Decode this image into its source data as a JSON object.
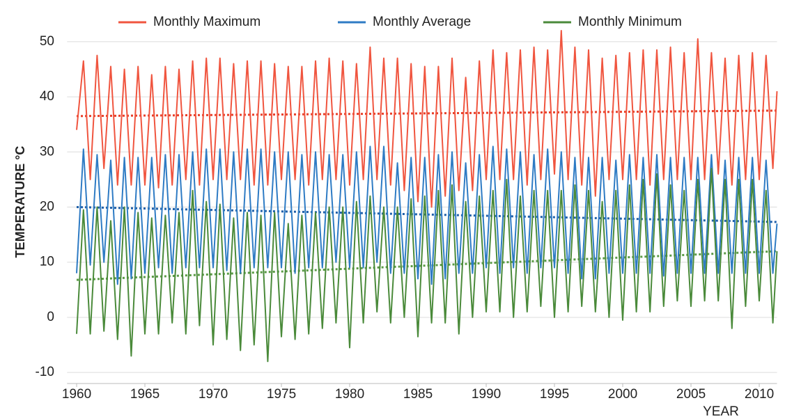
{
  "chart_data": {
    "type": "line",
    "xlabel": "YEAR",
    "ylabel": "TEMPERATURE  °C",
    "x": [
      1960,
      1960.5,
      1961,
      1961.5,
      1962,
      1962.5,
      1963,
      1963.5,
      1964,
      1964.5,
      1965,
      1965.5,
      1966,
      1966.5,
      1967,
      1967.5,
      1968,
      1968.5,
      1969,
      1969.5,
      1970,
      1970.5,
      1971,
      1971.5,
      1972,
      1972.5,
      1973,
      1973.5,
      1974,
      1974.5,
      1975,
      1975.5,
      1976,
      1976.5,
      1977,
      1977.5,
      1978,
      1978.5,
      1979,
      1979.5,
      1980,
      1980.5,
      1981,
      1981.5,
      1982,
      1982.5,
      1983,
      1983.5,
      1984,
      1984.5,
      1985,
      1985.5,
      1986,
      1986.5,
      1987,
      1987.5,
      1988,
      1988.5,
      1989,
      1989.5,
      1990,
      1990.5,
      1991,
      1991.5,
      1992,
      1992.5,
      1993,
      1993.5,
      1994,
      1994.5,
      1995,
      1995.5,
      1996,
      1996.5,
      1997,
      1997.5,
      1998,
      1998.5,
      1999,
      1999.5,
      2000,
      2000.5,
      2001,
      2001.5,
      2002,
      2002.5,
      2003,
      2003.5,
      2004,
      2004.5,
      2005,
      2005.5,
      2006,
      2006.5,
      2007,
      2007.5,
      2008,
      2008.5,
      2009,
      2009.5,
      2010,
      2010.5,
      2011,
      2011.3
    ],
    "series": [
      {
        "name": "Monthly Maximum",
        "color": "#f0553f",
        "values": [
          34,
          46.5,
          25,
          47.5,
          27,
          45.5,
          24,
          45,
          24,
          45.5,
          24,
          44,
          23.5,
          45.5,
          24,
          45,
          25,
          46.5,
          24,
          47,
          25,
          47,
          25,
          46,
          25,
          46.5,
          24,
          46.5,
          24,
          46,
          25,
          45.5,
          25,
          45.5,
          24,
          46.5,
          25,
          47,
          25,
          46.5,
          24,
          46,
          25,
          49,
          25,
          47,
          24,
          47,
          23,
          46,
          21,
          45.5,
          20,
          45.5,
          22,
          47,
          23,
          43.5,
          23,
          46.5,
          25,
          48.5,
          25,
          48,
          25,
          48.5,
          24,
          49,
          25,
          48.5,
          26,
          52,
          25,
          49,
          24,
          48.5,
          22,
          47,
          25,
          47.5,
          25,
          48,
          25,
          48.5,
          24,
          48.5,
          25,
          49,
          25,
          48,
          25,
          50.5,
          25,
          48,
          26,
          47,
          24,
          47.5,
          25,
          48,
          25,
          47.5,
          27,
          41
        ]
      },
      {
        "name": "Monthly Average",
        "color": "#2e7bc4",
        "values": [
          8,
          30.5,
          9.5,
          29.5,
          10,
          28.5,
          6,
          29,
          7,
          29,
          8,
          29,
          9,
          29.5,
          8,
          29.5,
          9,
          30,
          9,
          30.5,
          9,
          30.5,
          8.5,
          30,
          8,
          30.5,
          9,
          30.5,
          9,
          30,
          9,
          30,
          8,
          29.5,
          9,
          30,
          9,
          29.5,
          10,
          29.5,
          9,
          30,
          9,
          31,
          10,
          31,
          8,
          28,
          8,
          29,
          7,
          29,
          6,
          29.5,
          7,
          30,
          8,
          28,
          8,
          29.5,
          9,
          31,
          8,
          30.5,
          9,
          30,
          8,
          29.5,
          9,
          30.5,
          9,
          30,
          8,
          29,
          7,
          29,
          7,
          29,
          8,
          28.5,
          8,
          29.5,
          8,
          29,
          8,
          29.5,
          7.5,
          29,
          8,
          29,
          8,
          29,
          8,
          29.5,
          8,
          28.5,
          8,
          29,
          8,
          29,
          8,
          28.5,
          8,
          17
        ]
      },
      {
        "name": "Monthly Minimum",
        "color": "#4a8a3a",
        "values": [
          -3,
          19.5,
          -3,
          20,
          -2.5,
          17.5,
          -4,
          20,
          -7,
          19,
          -3,
          18,
          -3,
          18.5,
          -1,
          19,
          -3,
          23,
          -1.5,
          21,
          -5,
          20.5,
          -4,
          18,
          -6,
          19,
          -5,
          18.5,
          -8,
          19,
          -3.5,
          17,
          -4,
          18.5,
          -3,
          19,
          -2,
          20,
          -1,
          20,
          -5.5,
          21,
          -1,
          22,
          1,
          20,
          -1,
          20,
          0,
          21.5,
          -3.5,
          22,
          -1,
          23,
          -1,
          24,
          -3,
          21,
          0,
          22,
          1,
          23,
          1,
          25,
          0,
          22,
          1,
          23,
          2,
          23,
          0,
          23,
          1,
          24,
          2,
          23,
          1,
          21,
          0,
          23,
          -0.5,
          24,
          1,
          25,
          1,
          26,
          2,
          24,
          3,
          23,
          2,
          25,
          3,
          27,
          3,
          25,
          -2,
          25,
          2,
          25,
          3,
          23,
          -1,
          12
        ]
      }
    ],
    "trendlines": [
      {
        "color": "#e8402a",
        "x": [
          1960,
          2011.3
        ],
        "values": [
          36.5,
          37.5
        ]
      },
      {
        "color": "#1f5fa8",
        "x": [
          1960,
          2011.3
        ],
        "values": [
          20,
          17.3
        ]
      },
      {
        "color": "#5a9a45",
        "x": [
          1960,
          2011.3
        ],
        "values": [
          6.8,
          12
        ]
      }
    ],
    "xlim": [
      1959.3,
      2011.3
    ],
    "ylim": [
      -12,
      52
    ],
    "xticks": [
      1960,
      1965,
      1970,
      1975,
      1980,
      1985,
      1990,
      1995,
      2000,
      2005,
      2010
    ],
    "yticks": [
      -10,
      0,
      10,
      20,
      30,
      40,
      50
    ],
    "grid": true,
    "legend": "top"
  }
}
